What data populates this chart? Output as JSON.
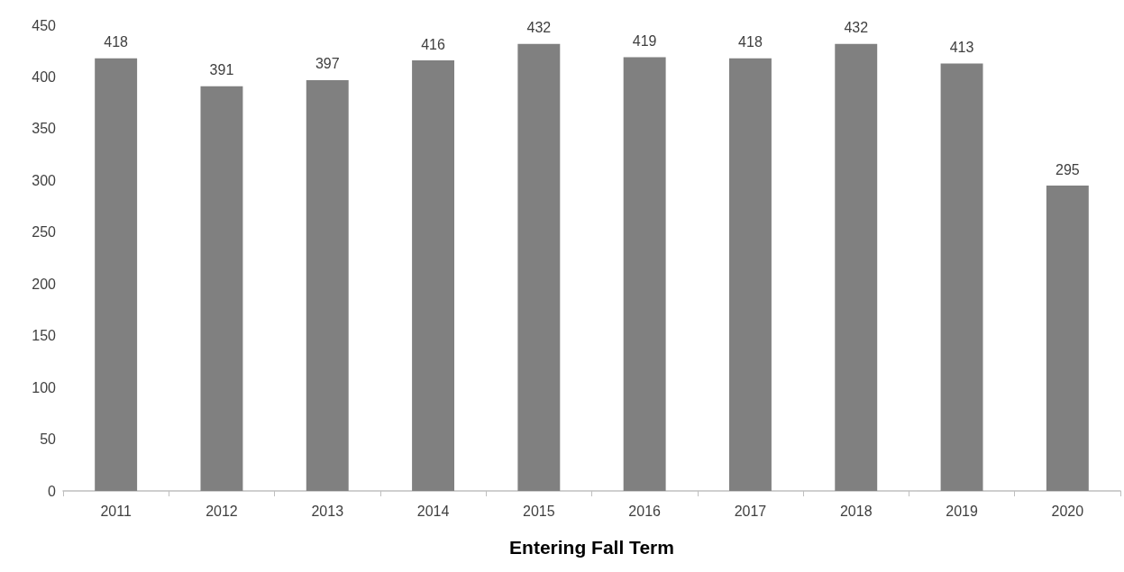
{
  "chart_data": {
    "type": "bar",
    "xlabel": "Entering Fall Term",
    "categories": [
      "2011",
      "2012",
      "2013",
      "2014",
      "2015",
      "2016",
      "2017",
      "2018",
      "2019",
      "2020"
    ],
    "values": [
      418,
      391,
      397,
      416,
      432,
      419,
      418,
      432,
      413,
      295
    ],
    "color": "#808080",
    "ylim": [
      0,
      450
    ],
    "yticks": [
      0,
      50,
      100,
      150,
      200,
      250,
      300,
      350,
      400,
      450
    ],
    "data_labels": true
  }
}
